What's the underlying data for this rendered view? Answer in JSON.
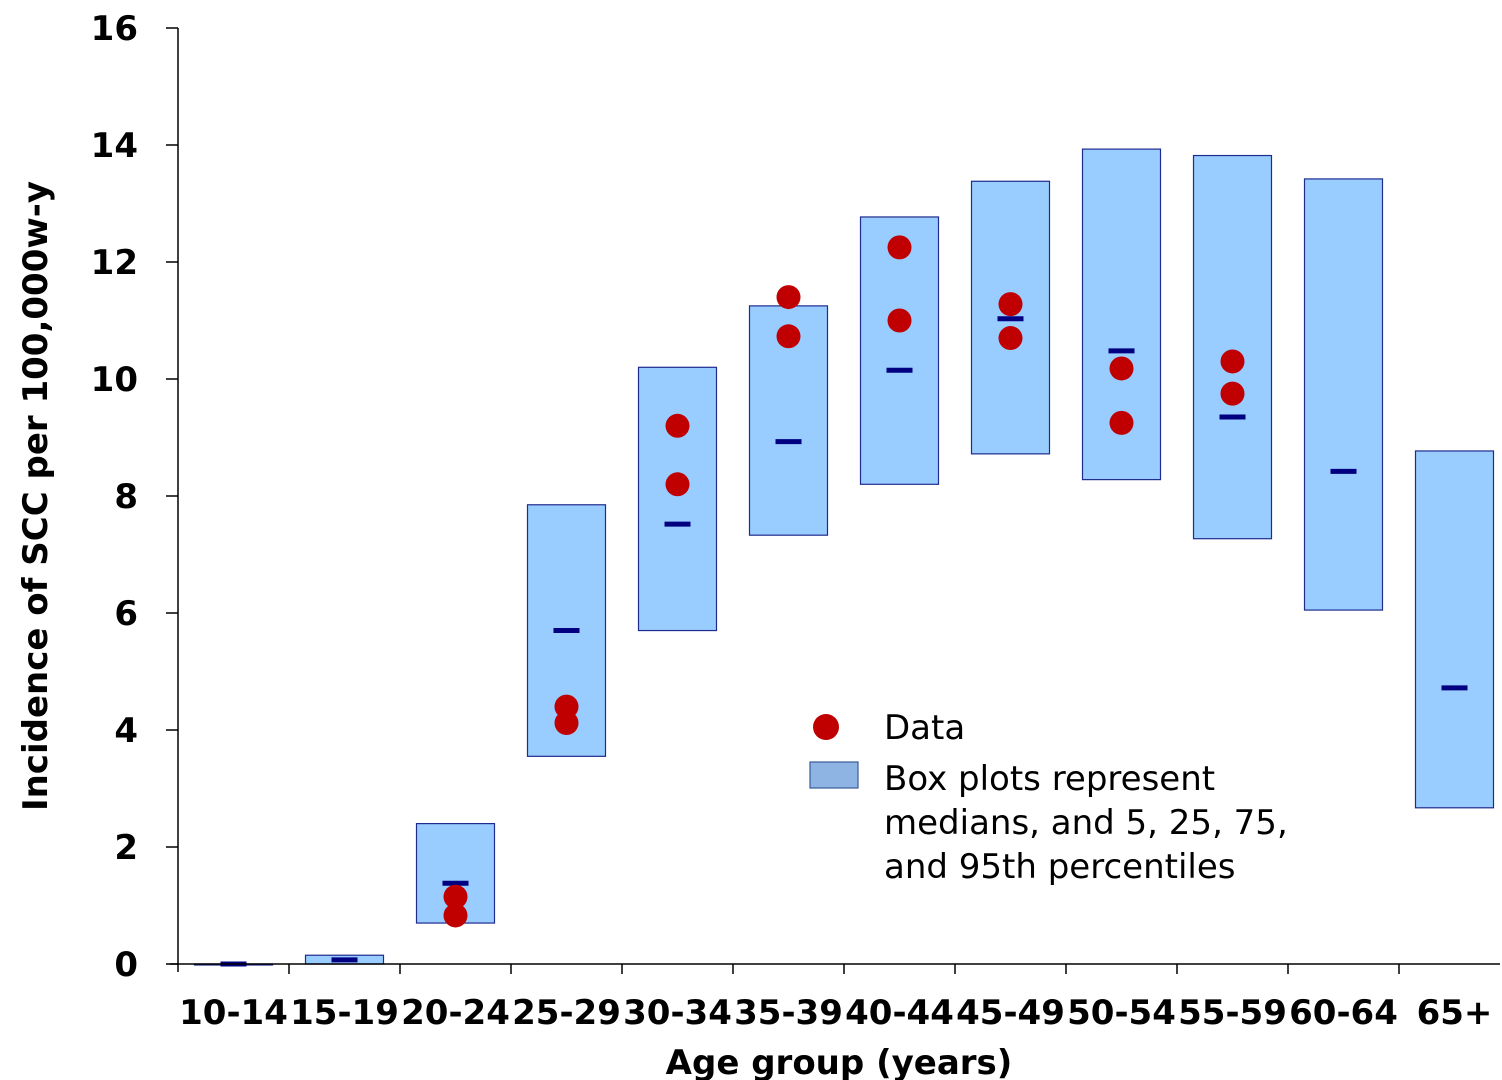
{
  "chart_data": {
    "type": "box",
    "xlabel": "Age group (years)",
    "ylabel": "Incidence of SCC per 100,000w-y",
    "ylim": [
      0,
      16
    ],
    "yticks": [
      0,
      2,
      4,
      6,
      8,
      10,
      12,
      14,
      16
    ],
    "grid": false,
    "legend_position": "center-right",
    "categories": [
      "10-14",
      "15-19",
      "20-24",
      "25-29",
      "30-34",
      "35-39",
      "40-44",
      "45-49",
      "50-54",
      "55-59",
      "60-64",
      "65+"
    ],
    "series": [
      {
        "name": "Box plots represent medians, and 5, 25, 75, and 95th percentiles",
        "type": "box",
        "color": "#99ccff",
        "median_color": "#000080",
        "boxes": [
          {
            "low": 0.0,
            "high": 0.0,
            "median": 0.0
          },
          {
            "low": 0.0,
            "high": 0.15,
            "median": 0.07
          },
          {
            "low": 0.7,
            "high": 2.4,
            "median": 1.38
          },
          {
            "low": 3.55,
            "high": 7.85,
            "median": 5.7
          },
          {
            "low": 5.7,
            "high": 10.2,
            "median": 7.52
          },
          {
            "low": 7.33,
            "high": 11.25,
            "median": 8.93
          },
          {
            "low": 8.2,
            "high": 12.77,
            "median": 10.15
          },
          {
            "low": 8.72,
            "high": 13.38,
            "median": 11.03
          },
          {
            "low": 8.28,
            "high": 13.93,
            "median": 10.48
          },
          {
            "low": 7.27,
            "high": 13.82,
            "median": 9.35
          },
          {
            "low": 6.05,
            "high": 13.42,
            "median": 8.42
          },
          {
            "low": 2.67,
            "high": 8.77,
            "median": 4.72
          }
        ]
      },
      {
        "name": "Data",
        "type": "scatter",
        "color": "#c00000",
        "points": [
          {
            "category": "20-24",
            "y": 1.15
          },
          {
            "category": "20-24",
            "y": 0.83
          },
          {
            "category": "25-29",
            "y": 4.4
          },
          {
            "category": "25-29",
            "y": 4.12
          },
          {
            "category": "30-34",
            "y": 9.2
          },
          {
            "category": "30-34",
            "y": 8.2
          },
          {
            "category": "35-39",
            "y": 11.4
          },
          {
            "category": "35-39",
            "y": 10.73
          },
          {
            "category": "40-44",
            "y": 12.25
          },
          {
            "category": "40-44",
            "y": 11.0
          },
          {
            "category": "45-49",
            "y": 11.28
          },
          {
            "category": "45-49",
            "y": 10.7
          },
          {
            "category": "50-54",
            "y": 10.18
          },
          {
            "category": "50-54",
            "y": 9.25
          },
          {
            "category": "55-59",
            "y": 10.3
          },
          {
            "category": "55-59",
            "y": 9.75
          }
        ]
      }
    ],
    "legend": {
      "data_label": "Data",
      "box_lines": [
        "Box plots represent",
        "medians, and 5, 25, 75,",
        "and 95th percentiles"
      ]
    }
  }
}
